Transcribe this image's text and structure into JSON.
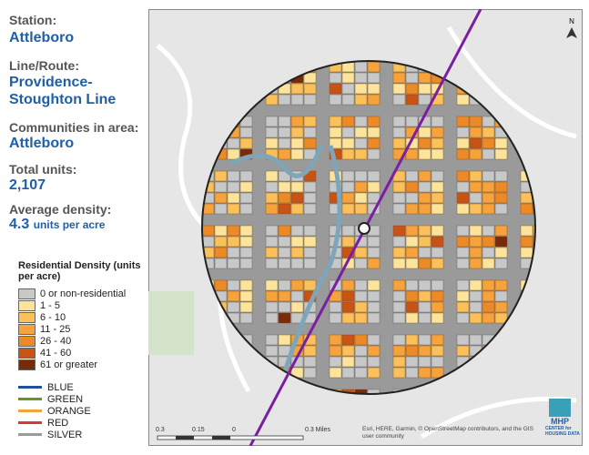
{
  "info": {
    "station_label": "Station:",
    "station": "Attleboro",
    "line_label": "Line/Route:",
    "line": "Providence-Stoughton Line",
    "communities_label": "Communities in area:",
    "communities": "Attleboro",
    "units_label": "Total units:",
    "units": "2,107",
    "density_label": "Average density:",
    "density": 4.3,
    "density_unit": "units per acre"
  },
  "density_legend": {
    "title": "Residential Density (units per acre)",
    "items": [
      {
        "label": "0 or non-residential",
        "color": "#c8c8c8"
      },
      {
        "label": "1 - 5",
        "color": "#fde49a"
      },
      {
        "label": "6 - 10",
        "color": "#fbc05a"
      },
      {
        "label": "11 - 25",
        "color": "#f7a23a"
      },
      {
        "label": "26 - 40",
        "color": "#ee8a25"
      },
      {
        "label": "41 - 60",
        "color": "#c95312"
      },
      {
        "label": "61 or greater",
        "color": "#7a2a08"
      }
    ]
  },
  "line_legend": [
    {
      "label": "BLUE",
      "color": "#1f4fa0"
    },
    {
      "label": "GREEN",
      "color": "#5a9a2a"
    },
    {
      "label": "ORANGE",
      "color": "#f2a33a"
    },
    {
      "label": "RED",
      "color": "#d83a3a"
    },
    {
      "label": "SILVER",
      "color": "#9a9a9a"
    }
  ],
  "map": {
    "north": "N",
    "scale_labels": [
      "0.3",
      "0.15",
      "0",
      "0.3 Miles"
    ],
    "attribution": "Esri, HERE, Garmin, © OpenStreetMap contributors, and the GIS user community",
    "logo": "MHP",
    "logo_sub": "CENTER for HOUSING DATA"
  }
}
